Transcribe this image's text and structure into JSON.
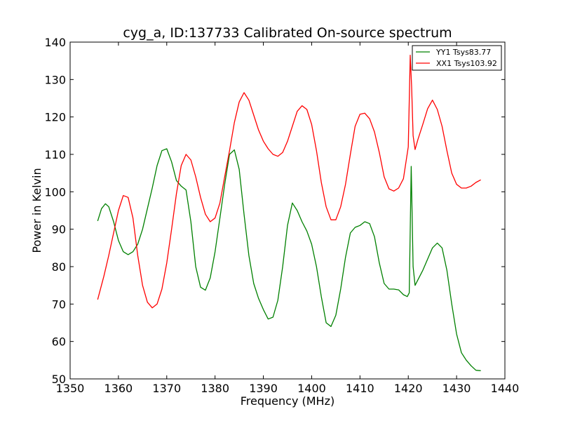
{
  "chart_data": {
    "type": "line",
    "title": "cyg_a, ID:137733 Calibrated On-source spectrum",
    "xlabel": "Frequency (MHz)",
    "ylabel": "Power in Kelvin",
    "xlim": [
      1350,
      1440
    ],
    "ylim": [
      50,
      140
    ],
    "xticks": [
      1350,
      1360,
      1370,
      1380,
      1390,
      1400,
      1410,
      1420,
      1430,
      1440
    ],
    "yticks": [
      50,
      60,
      70,
      80,
      90,
      100,
      110,
      120,
      130,
      140
    ],
    "grid": false,
    "legend_position": "top-right",
    "series": [
      {
        "name": "YY1 Tsys83.77",
        "color": "#008000",
        "x": [
          1355.7,
          1356.5,
          1357.3,
          1358,
          1359,
          1360,
          1361,
          1362,
          1363,
          1364,
          1365,
          1366,
          1367,
          1368,
          1369,
          1370,
          1371,
          1372,
          1373,
          1374,
          1375,
          1376,
          1377,
          1378,
          1379,
          1380,
          1381,
          1382,
          1383,
          1384,
          1385,
          1386,
          1387,
          1388,
          1389,
          1390,
          1391,
          1392,
          1393,
          1394,
          1395,
          1396,
          1397,
          1398,
          1399,
          1400,
          1401,
          1402,
          1403,
          1404,
          1405,
          1406,
          1407,
          1408,
          1409,
          1410,
          1411,
          1412,
          1413,
          1414,
          1415,
          1416,
          1417,
          1418,
          1419,
          1419.8,
          1420.2,
          1420.6,
          1421,
          1421.4,
          1422,
          1423,
          1424,
          1425,
          1426,
          1427,
          1428,
          1429,
          1430,
          1431,
          1432,
          1433,
          1434,
          1435
        ],
        "y": [
          92.2,
          95.5,
          96.8,
          96,
          92,
          87,
          84,
          83.2,
          84,
          86,
          90,
          95.5,
          101,
          107,
          111,
          111.5,
          108,
          103,
          101.5,
          100.5,
          92,
          80,
          74.5,
          73.7,
          77,
          84,
          93,
          102,
          110,
          111.2,
          106,
          94,
          83,
          75.5,
          71.5,
          68.5,
          66,
          66.5,
          71,
          80,
          91,
          97,
          95,
          92,
          89.5,
          86,
          80,
          72,
          65,
          64,
          67,
          74,
          82.5,
          89,
          90.5,
          91,
          92,
          91.5,
          88,
          81,
          75.5,
          74,
          74,
          73.8,
          72.5,
          72,
          73,
          106.8,
          80,
          75,
          76.5,
          79,
          82,
          85,
          86.3,
          85,
          79,
          70,
          62,
          57,
          55,
          53.5,
          52.3,
          52.2
        ]
      },
      {
        "name": "XX1 Tsys103.92",
        "color": "#ff0000",
        "x": [
          1355.7,
          1357,
          1358,
          1359,
          1360,
          1361,
          1362,
          1363,
          1364,
          1365,
          1366,
          1367,
          1368,
          1369,
          1370,
          1371,
          1372,
          1373,
          1374,
          1375,
          1376,
          1377,
          1378,
          1379,
          1380,
          1381,
          1382,
          1383,
          1384,
          1385,
          1386,
          1387,
          1388,
          1389,
          1390,
          1391,
          1392,
          1393,
          1394,
          1395,
          1396,
          1397,
          1398,
          1399,
          1400,
          1401,
          1402,
          1403,
          1404,
          1405,
          1406,
          1407,
          1408,
          1409,
          1410,
          1411,
          1412,
          1413,
          1414,
          1415,
          1416,
          1417,
          1418,
          1419,
          1420,
          1420.4,
          1420.7,
          1421,
          1421.4,
          1422,
          1423,
          1424,
          1425,
          1426,
          1427,
          1428,
          1429,
          1430,
          1431,
          1432,
          1433,
          1434,
          1435
        ],
        "y": [
          71.2,
          77.5,
          83,
          89,
          95,
          99,
          98.5,
          93,
          83,
          75,
          70.5,
          69,
          70,
          74,
          81,
          90,
          99.5,
          107,
          110,
          108.5,
          104,
          98.5,
          94,
          92,
          93,
          97,
          104,
          111,
          118.5,
          124,
          126.5,
          124.5,
          120.5,
          116.5,
          113.5,
          111.5,
          110,
          109.5,
          110.5,
          113.5,
          117.5,
          121.5,
          123,
          122,
          118,
          111,
          102.5,
          96,
          92.5,
          92.5,
          96,
          102,
          110,
          117.5,
          120.7,
          121,
          119.5,
          116,
          110.5,
          104,
          100.8,
          100.2,
          101,
          103.5,
          112,
          136.5,
          128,
          115,
          111.3,
          114,
          118,
          122.2,
          124.5,
          122,
          117.5,
          111,
          105,
          102,
          101,
          101,
          101.5,
          102.5,
          103.2
        ]
      }
    ]
  }
}
